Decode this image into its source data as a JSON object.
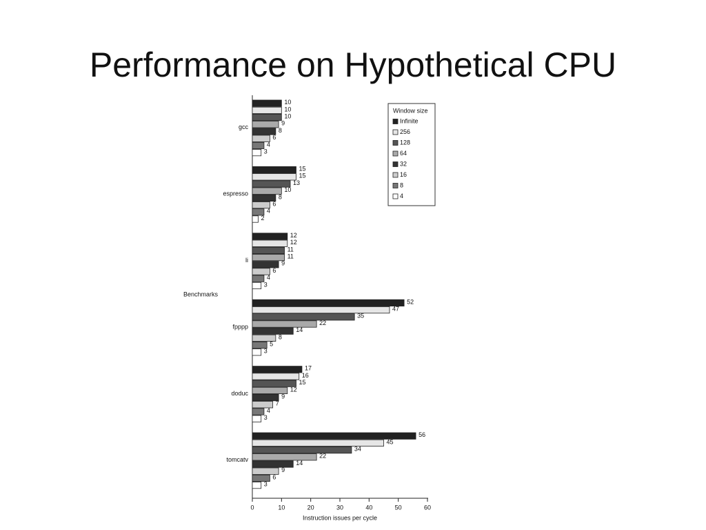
{
  "chart_data": {
    "type": "bar",
    "orientation": "horizontal",
    "title": "Performance on Hypothetical CPU",
    "x_label": "Instruction issues per cycle",
    "y_label": "Benchmarks",
    "legend_title": "Window size",
    "legend_position": "upper right",
    "categories": [
      "gcc",
      "espresso",
      "li",
      "fpppp",
      "doduc",
      "tomcatv"
    ],
    "series": [
      {
        "name": "Infinite",
        "color": "#222222",
        "values": [
          10,
          15,
          12,
          52,
          17,
          56
        ]
      },
      {
        "name": "256",
        "color": "#e6e6e6",
        "values": [
          10,
          15,
          12,
          47,
          16,
          45
        ]
      },
      {
        "name": "128",
        "color": "#555555",
        "values": [
          10,
          13,
          11,
          35,
          15,
          34
        ]
      },
      {
        "name": "64",
        "color": "#aaaaaa",
        "values": [
          9,
          10,
          11,
          22,
          12,
          22
        ]
      },
      {
        "name": "32",
        "color": "#333333",
        "values": [
          8,
          8,
          9,
          14,
          9,
          14
        ]
      },
      {
        "name": "16",
        "color": "#cccccc",
        "values": [
          6,
          6,
          6,
          8,
          7,
          9
        ]
      },
      {
        "name": "8",
        "color": "#777777",
        "values": [
          4,
          4,
          4,
          5,
          4,
          6
        ]
      },
      {
        "name": "4",
        "color": "#ffffff",
        "values": [
          3,
          2,
          3,
          3,
          3,
          3
        ]
      }
    ],
    "xlim": [
      0,
      60
    ],
    "xticks": [
      0,
      10,
      20,
      30,
      40,
      50,
      60
    ]
  }
}
